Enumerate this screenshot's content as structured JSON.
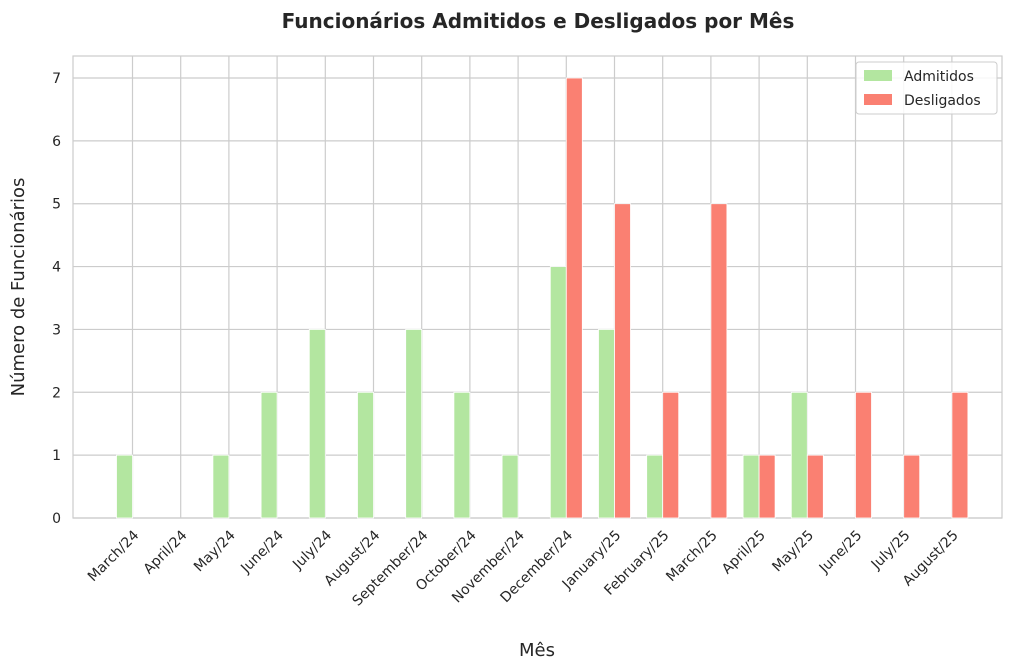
{
  "chart_data": {
    "type": "bar",
    "title": "Funcionários Admitidos e Desligados por Mês",
    "xlabel": "Mês",
    "ylabel": "Número de Funcionários",
    "categories": [
      "March/24",
      "April/24",
      "May/24",
      "June/24",
      "July/24",
      "August/24",
      "September/24",
      "October/24",
      "November/24",
      "December/24",
      "January/25",
      "February/25",
      "March/25",
      "April/25",
      "May/25",
      "June/25",
      "July/25",
      "August/25"
    ],
    "series": [
      {
        "name": "Admitidos",
        "color": "#b3e6a0",
        "values": [
          1,
          0,
          1,
          2,
          3,
          2,
          3,
          2,
          1,
          4,
          3,
          1,
          0,
          1,
          2,
          0,
          0,
          0
        ]
      },
      {
        "name": "Desligados",
        "color": "#fa8072",
        "values": [
          0,
          0,
          0,
          0,
          0,
          0,
          0,
          0,
          0,
          7,
          5,
          2,
          5,
          1,
          1,
          2,
          1,
          2
        ]
      }
    ],
    "ylim": [
      0,
      7.35
    ],
    "yticks": [
      0,
      1,
      2,
      3,
      4,
      5,
      6,
      7
    ],
    "grid": true,
    "legend": "top-right"
  }
}
